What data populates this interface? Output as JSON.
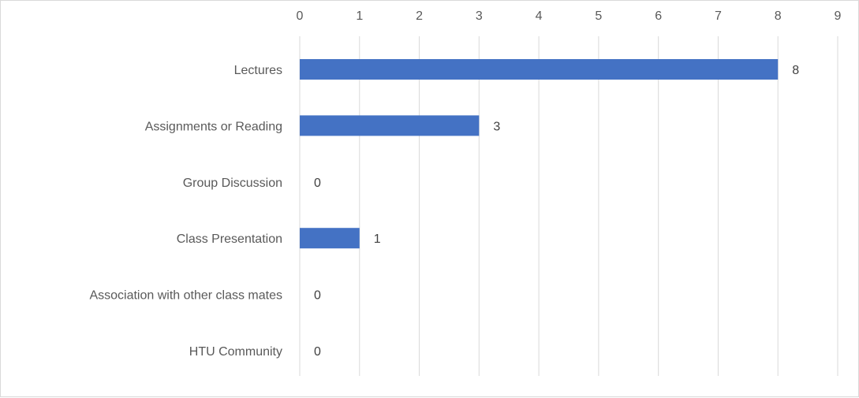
{
  "chart_data": {
    "type": "bar",
    "orientation": "horizontal",
    "categories": [
      "Lectures",
      "Assignments or Reading",
      "Group Discussion",
      "Class Presentation",
      "Association with other class mates",
      "HTU Community"
    ],
    "values": [
      8,
      3,
      0,
      1,
      0,
      0
    ],
    "xlim": [
      0,
      9
    ],
    "xticks": [
      "0",
      "1",
      "2",
      "3",
      "4",
      "5",
      "6",
      "7",
      "8",
      "9"
    ],
    "x_axis_position": "top",
    "grid": true,
    "data_labels": true,
    "bar_color": "#4472C4",
    "grid_color": "#d9d9d9",
    "title": "",
    "xlabel": "",
    "ylabel": ""
  }
}
